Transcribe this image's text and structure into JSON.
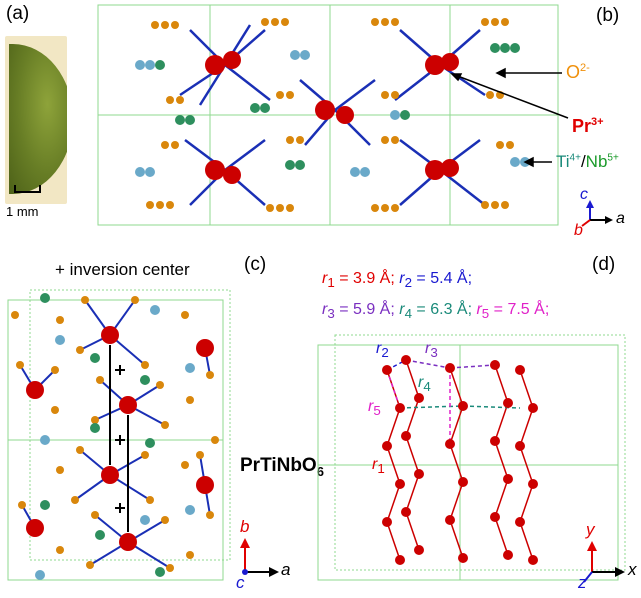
{
  "panels": {
    "a": "(a)",
    "b": "(b)",
    "c": "(c)",
    "d": "(d)"
  },
  "panel_a": {
    "scale_label": "1 mm"
  },
  "panel_b": {
    "o_label": "O",
    "o_charge": "2-",
    "pr_label": "Pr",
    "pr_charge": "3+",
    "ti_label": "Ti",
    "ti_charge": "4+",
    "slash": "/",
    "nb_label": "Nb",
    "nb_charge": "5+",
    "axis_c": "c",
    "axis_b": "b",
    "axis_a": "a"
  },
  "panel_c": {
    "inversion_label": "+ inversion center",
    "formula_main": "PrTiNbO",
    "formula_sub": "6",
    "axis_b": "b",
    "axis_a": "a",
    "axis_c": "c"
  },
  "panel_d": {
    "r1": "r",
    "r1_sub": "1",
    "r1_val": " = 3.9 Å; ",
    "r2": "r",
    "r2_sub": "2",
    "r2_val": " = 5.4 Å;",
    "r3": "r",
    "r3_sub": "3",
    "r3_val": " = 5.9 Å; ",
    "r4": "r",
    "r4_sub": "4",
    "r4_val": " = 6.3 Å; ",
    "r5": "r",
    "r5_sub": "5",
    "r5_val": " = 7.5 Å;",
    "diag_r1": "r",
    "diag_r1_sub": "1",
    "diag_r2": "r",
    "diag_r2_sub": "2",
    "diag_r3": "r",
    "diag_r3_sub": "3",
    "diag_r4": "r",
    "diag_r4_sub": "4",
    "diag_r5": "r",
    "diag_r5_sub": "5",
    "axis_y": "y",
    "axis_x": "x",
    "axis_z": "z"
  },
  "colors": {
    "pr": "#cc0000",
    "o": "#d9870c",
    "ti": "#6aa9c9",
    "nb": "#2e8f5e",
    "bond": "#1a2fb5",
    "cell": "#8fd88f",
    "red_text": "#e00000",
    "orange_text": "#f0900a",
    "teal_text": "#1a8a7a",
    "green_text": "#1a9a2a",
    "purple_text": "#7a2fc0",
    "magenta_text": "#e020c8",
    "blue_text": "#1a1ad0"
  }
}
